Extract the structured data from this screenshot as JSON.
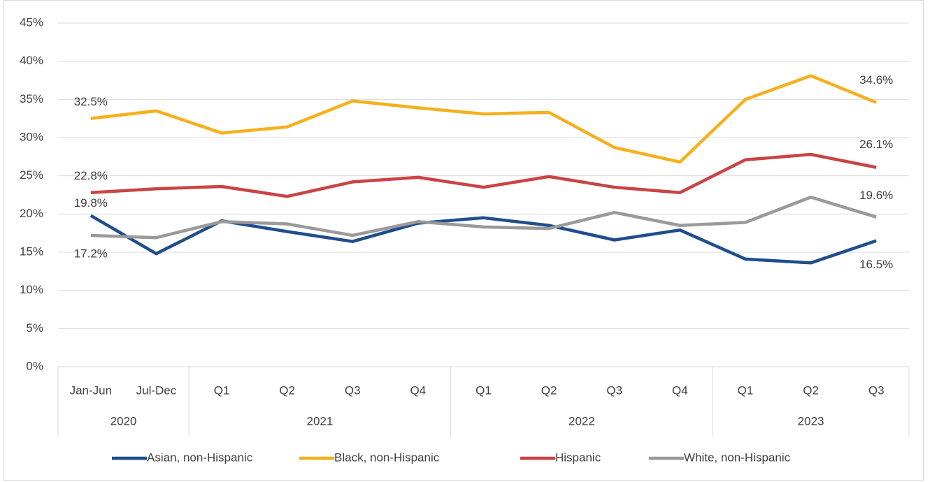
{
  "chart_data": {
    "type": "line",
    "categories": [
      "Jan-Jun",
      "Jul-Dec",
      "Q1",
      "Q2",
      "Q3",
      "Q4",
      "Q1",
      "Q2",
      "Q3",
      "Q4",
      "Q1",
      "Q2",
      "Q3"
    ],
    "category_groups": [
      {
        "name": "2020",
        "count": 2
      },
      {
        "name": "2021",
        "count": 4
      },
      {
        "name": "2022",
        "count": 4
      },
      {
        "name": "2023",
        "count": 3
      }
    ],
    "series": [
      {
        "name": "Asian, non-Hispanic",
        "color": "#1f4e8c",
        "values": [
          19.8,
          14.8,
          19.1,
          17.7,
          16.4,
          18.8,
          19.5,
          18.5,
          16.6,
          17.9,
          14.1,
          13.6,
          16.5
        ],
        "value_labels": [
          "19.8%",
          null,
          null,
          null,
          null,
          null,
          null,
          null,
          null,
          null,
          null,
          null,
          "16.5%"
        ]
      },
      {
        "name": "Black, non-Hispanic",
        "color": "#f5b01c",
        "values": [
          32.5,
          33.5,
          30.6,
          31.4,
          34.8,
          33.9,
          33.1,
          33.3,
          28.7,
          26.8,
          35.0,
          38.1,
          34.6
        ],
        "value_labels": [
          "32.5%",
          null,
          null,
          null,
          null,
          null,
          null,
          null,
          null,
          null,
          null,
          null,
          "34.6%"
        ]
      },
      {
        "name": "Hispanic",
        "color": "#c94444",
        "values": [
          22.8,
          23.3,
          23.6,
          22.3,
          24.2,
          24.8,
          23.5,
          24.9,
          23.5,
          22.8,
          27.1,
          27.8,
          26.1
        ],
        "value_labels": [
          "22.8%",
          null,
          null,
          null,
          null,
          null,
          null,
          null,
          null,
          null,
          null,
          null,
          "26.1%"
        ]
      },
      {
        "name": "White, non-Hispanic",
        "color": "#9a9a9a",
        "values": [
          17.2,
          16.9,
          19.0,
          18.7,
          17.2,
          19.0,
          18.3,
          18.1,
          20.2,
          18.5,
          18.9,
          22.2,
          19.6
        ],
        "value_labels": [
          "17.2%",
          null,
          null,
          null,
          null,
          null,
          null,
          null,
          null,
          null,
          null,
          null,
          "19.6%"
        ]
      }
    ],
    "ylim": [
      0,
      45
    ],
    "yticks": [
      {
        "value": 0,
        "label": "0%"
      },
      {
        "value": 5,
        "label": "5%"
      },
      {
        "value": 10,
        "label": "10%"
      },
      {
        "value": 15,
        "label": "15%"
      },
      {
        "value": 20,
        "label": "20%"
      },
      {
        "value": 25,
        "label": "25%"
      },
      {
        "value": 30,
        "label": "30%"
      },
      {
        "value": 35,
        "label": "35%"
      },
      {
        "value": 40,
        "label": "40%"
      },
      {
        "value": 45,
        "label": "45%"
      }
    ],
    "grid": true,
    "legend": "bottom"
  }
}
